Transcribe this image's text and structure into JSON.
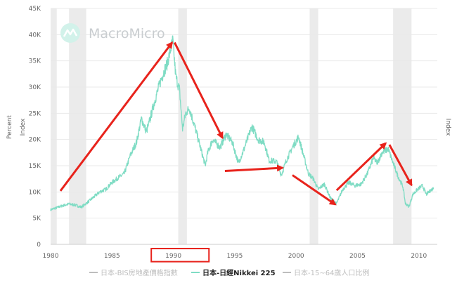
{
  "brand": {
    "name": "MacroMicro",
    "icon": "macromicro-logo-icon"
  },
  "colors": {
    "series": "#7fdcc4",
    "shading": "#ebebeb",
    "grid": "#e9e9e9",
    "arrow": "#e8231c",
    "highlight_box": "#e8231c",
    "legend_inactive": "#bdbdbd",
    "legend_active": "#222222"
  },
  "chart_data": {
    "type": "line",
    "title": "",
    "xlabel": "",
    "ylabel_left": "Percent",
    "ylabel_right": "Index",
    "xlim": [
      1980,
      2011.5
    ],
    "ylim": [
      0,
      45000
    ],
    "x_ticks": [
      1980,
      1985,
      1990,
      1995,
      2000,
      2005,
      2010
    ],
    "x_tick_labels": [
      "1980",
      "1985",
      "1990",
      "1995",
      "2000",
      "2005",
      "2010"
    ],
    "y_ticks": [
      0,
      5000,
      10000,
      15000,
      20000,
      25000,
      30000,
      35000,
      40000,
      45000
    ],
    "y_tick_labels": [
      "0",
      "5K",
      "10K",
      "15K",
      "20K",
      "25K",
      "30K",
      "35K",
      "40K",
      "45K"
    ],
    "grid": true,
    "legend_position": "bottom",
    "legend": [
      {
        "label": "日本-BIS房地產價格指數",
        "active": false
      },
      {
        "label": "日本-日經Nikkei 225",
        "active": true
      },
      {
        "label": "日本-15~64歲人口比例",
        "active": false
      }
    ],
    "recession_bands": [
      [
        1980.0,
        1980.5
      ],
      [
        1981.5,
        1982.9
      ],
      [
        1990.4,
        1991.1
      ],
      [
        2001.1,
        2001.8
      ],
      [
        2007.9,
        2009.4
      ]
    ],
    "series": [
      {
        "name": "日本-日經Nikkei 225",
        "points": [
          [
            1980.0,
            6600
          ],
          [
            1980.5,
            7000
          ],
          [
            1981.0,
            7400
          ],
          [
            1981.5,
            7700
          ],
          [
            1982.0,
            7500
          ],
          [
            1982.5,
            7100
          ],
          [
            1983.0,
            8000
          ],
          [
            1983.5,
            9000
          ],
          [
            1984.0,
            10000
          ],
          [
            1984.5,
            10500
          ],
          [
            1985.0,
            11800
          ],
          [
            1985.5,
            12700
          ],
          [
            1986.0,
            13500
          ],
          [
            1986.5,
            17000
          ],
          [
            1987.0,
            19500
          ],
          [
            1987.4,
            24000
          ],
          [
            1987.8,
            21500
          ],
          [
            1988.0,
            23000
          ],
          [
            1988.5,
            27500
          ],
          [
            1989.0,
            31500
          ],
          [
            1989.5,
            34500
          ],
          [
            1989.95,
            38900
          ],
          [
            1990.2,
            32000
          ],
          [
            1990.5,
            29500
          ],
          [
            1990.75,
            22000
          ],
          [
            1991.0,
            25000
          ],
          [
            1991.3,
            26000
          ],
          [
            1991.8,
            22000
          ],
          [
            1992.2,
            18500
          ],
          [
            1992.6,
            15000
          ],
          [
            1992.8,
            17500
          ],
          [
            1993.2,
            20000
          ],
          [
            1993.8,
            18500
          ],
          [
            1994.3,
            21000
          ],
          [
            1994.8,
            19500
          ],
          [
            1995.3,
            15500
          ],
          [
            1995.7,
            17800
          ],
          [
            1996.4,
            22500
          ],
          [
            1996.9,
            20000
          ],
          [
            1997.4,
            19500
          ],
          [
            1997.8,
            16000
          ],
          [
            1998.4,
            15800
          ],
          [
            1998.8,
            13200
          ],
          [
            1999.2,
            16000
          ],
          [
            1999.7,
            18500
          ],
          [
            2000.2,
            20500
          ],
          [
            2000.6,
            17000
          ],
          [
            2001.0,
            13500
          ],
          [
            2001.4,
            12500
          ],
          [
            2001.8,
            10500
          ],
          [
            2002.3,
            11500
          ],
          [
            2002.8,
            8800
          ],
          [
            2003.3,
            7800
          ],
          [
            2003.8,
            10500
          ],
          [
            2004.3,
            11800
          ],
          [
            2004.8,
            11200
          ],
          [
            2005.3,
            11500
          ],
          [
            2005.8,
            13500
          ],
          [
            2006.3,
            16500
          ],
          [
            2006.6,
            15500
          ],
          [
            2007.0,
            17500
          ],
          [
            2007.5,
            18200
          ],
          [
            2007.9,
            15500
          ],
          [
            2008.3,
            13000
          ],
          [
            2008.7,
            11000
          ],
          [
            2008.9,
            7800
          ],
          [
            2009.2,
            7200
          ],
          [
            2009.5,
            9500
          ],
          [
            2009.9,
            10500
          ],
          [
            2010.3,
            11200
          ],
          [
            2010.6,
            9500
          ],
          [
            2010.9,
            10200
          ],
          [
            2011.2,
            10700
          ]
        ]
      }
    ]
  },
  "annotations": {
    "arrows": [
      {
        "from": [
          1980.8,
          10200
        ],
        "to": [
          1989.9,
          38500
        ]
      },
      {
        "from": [
          1990.1,
          38500
        ],
        "to": [
          1994.0,
          20300
        ]
      },
      {
        "from": [
          1994.2,
          14000
        ],
        "to": [
          1998.9,
          14600
        ]
      },
      {
        "from": [
          1999.7,
          13200
        ],
        "to": [
          2003.2,
          7600
        ]
      },
      {
        "from": [
          2003.3,
          10300
        ],
        "to": [
          2007.3,
          19300
        ]
      },
      {
        "from": [
          2007.6,
          19000
        ],
        "to": [
          2009.4,
          11300
        ]
      }
    ],
    "highlight_box": {
      "x_range": [
        1988.2,
        1992.9
      ],
      "y_range": [
        -800,
        -3300
      ]
    }
  }
}
